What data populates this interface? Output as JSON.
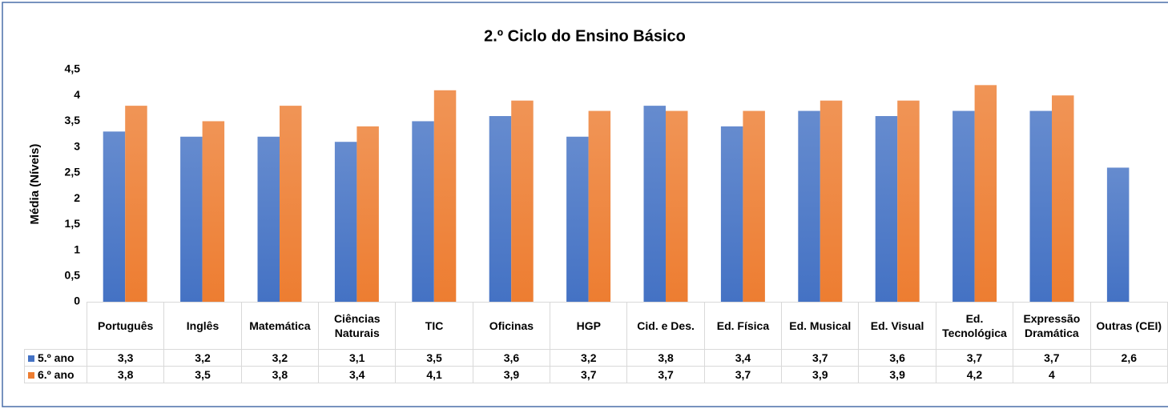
{
  "chart_data": {
    "type": "bar",
    "title": "2.º Ciclo do Ensino Básico",
    "y_label": "Média (Níveis)",
    "categories": [
      "Português",
      "Inglês",
      "Matemática",
      "Ciências Naturais",
      "TIC",
      "Oficinas",
      "HGP",
      "Cid. e Des.",
      "Ed. Física",
      "Ed. Musical",
      "Ed. Visual",
      "Ed. Tecnológica",
      "Expressão Dramática",
      "Outras (CEI)"
    ],
    "series": [
      {
        "name": "5.º ano",
        "color": "#4472c4",
        "values": [
          3.3,
          3.2,
          3.2,
          3.1,
          3.5,
          3.6,
          3.2,
          3.8,
          3.4,
          3.7,
          3.6,
          3.7,
          3.7,
          2.6
        ],
        "value_labels": [
          "3,3",
          "3,2",
          "3,2",
          "3,1",
          "3,5",
          "3,6",
          "3,2",
          "3,8",
          "3,4",
          "3,7",
          "3,6",
          "3,7",
          "3,7",
          "2,6"
        ]
      },
      {
        "name": "6.º ano",
        "color": "#ed7d31",
        "values": [
          3.8,
          3.5,
          3.8,
          3.4,
          4.1,
          3.9,
          3.7,
          3.7,
          3.7,
          3.9,
          3.9,
          4.2,
          4,
          null
        ],
        "value_labels": [
          "3,8",
          "3,5",
          "3,8",
          "3,4",
          "4,1",
          "3,9",
          "3,7",
          "3,7",
          "3,7",
          "3,9",
          "3,9",
          "4,2",
          "4",
          null
        ]
      }
    ],
    "ylim": [
      0,
      4.5
    ],
    "yticks": [
      0,
      {
        "value": 0.5,
        "label": "0,5"
      },
      1,
      {
        "value": 1.5,
        "label": "1,5"
      },
      2,
      {
        "value": 2.5,
        "label": "2,5"
      },
      3,
      {
        "value": 3.5,
        "label": "3,5"
      },
      4,
      {
        "value": 4.5,
        "label": "4,5"
      }
    ],
    "grid": false,
    "data_table": true
  }
}
